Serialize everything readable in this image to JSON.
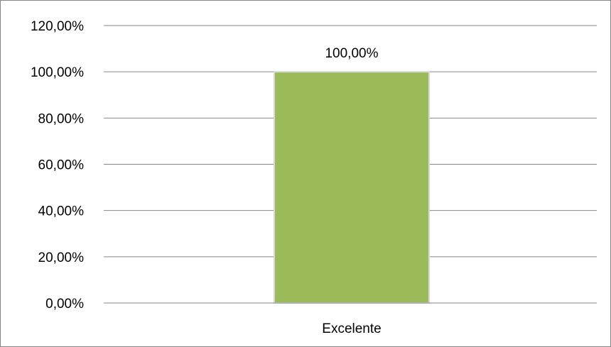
{
  "chart_data": {
    "type": "bar",
    "categories": [
      "Excelente"
    ],
    "values": [
      100
    ],
    "data_labels": [
      "100,00%"
    ],
    "title": "",
    "xlabel": "",
    "ylabel": "",
    "ylim": [
      0,
      120
    ],
    "yticks": [
      0,
      20,
      40,
      60,
      80,
      100,
      120
    ],
    "ytick_labels": [
      "0,00%",
      "20,00%",
      "40,00%",
      "60,00%",
      "80,00%",
      "100,00%",
      "120,00%"
    ],
    "grid": true,
    "legend": "none",
    "colors": {
      "bar": "#9BBB59",
      "bar_edge": "#D9D9D9",
      "gridline": "#868686",
      "axis": "#868686"
    }
  }
}
